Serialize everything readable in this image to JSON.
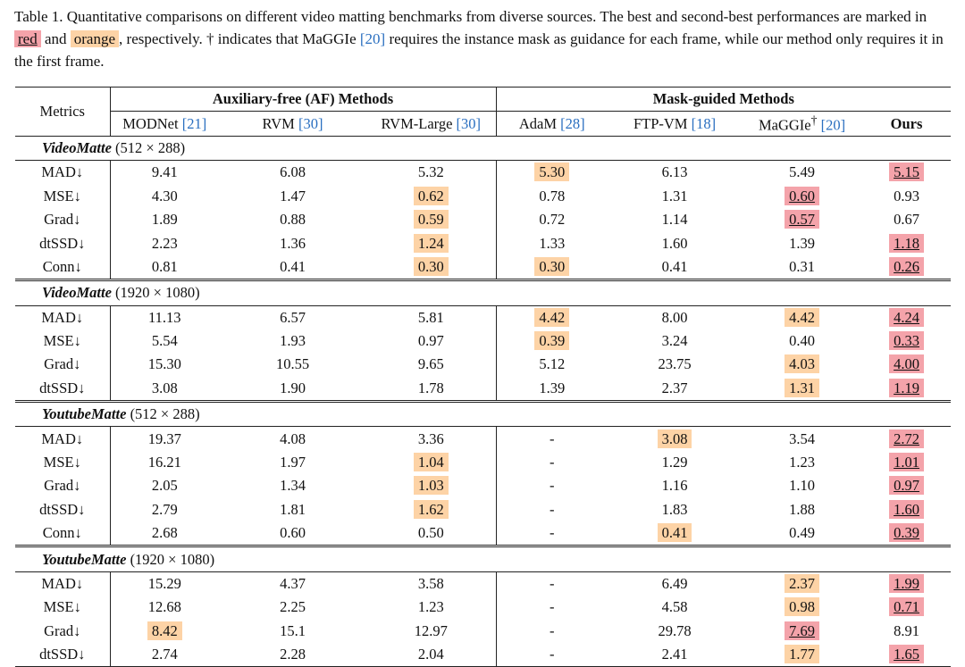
{
  "caption": {
    "before": "Table 1. Quantitative comparisons on different video matting benchmarks from diverse sources. The best and second-best performances are marked in",
    "best_word": "red",
    "between": "and",
    "second_word": "orange",
    "after": ", respectively. † indicates that MaGGIe",
    "ref": "[20]",
    "end": "requires the instance mask as guidance for each frame, while our method only requires it in the first frame."
  },
  "highlight_colors": {
    "best": "#f4a3aa",
    "second": "#fdd3a6"
  },
  "table": {
    "metrics_header": "Metrics",
    "groups": [
      {
        "name": "Auxiliary-free (AF) Methods",
        "span": 3
      },
      {
        "name": "Mask-guided Methods",
        "span": 4
      }
    ],
    "columns": [
      {
        "name": "MODNet",
        "ref": "[21]"
      },
      {
        "name": "RVM",
        "ref": "[30]"
      },
      {
        "name": "RVM-Large",
        "ref": "[30]"
      },
      {
        "name": "AdaM",
        "ref": "[28]"
      },
      {
        "name": "FTP-VM",
        "ref": "[18]"
      },
      {
        "name": "MaGGIe",
        "sup": "†",
        "ref": "[20]"
      },
      {
        "name": "Ours",
        "bold": true
      }
    ],
    "sections": [
      {
        "title": "VideoMatte",
        "subtitle": "(512 × 288)",
        "rows": [
          {
            "metric": "MAD↓",
            "cells": [
              "9.41",
              "6.08",
              "5.32",
              {
                "text": "5.30",
                "mark": "second"
              },
              "6.13",
              "5.49",
              {
                "text": "5.15",
                "mark": "best"
              }
            ]
          },
          {
            "metric": "MSE↓",
            "cells": [
              "4.30",
              "1.47",
              {
                "text": "0.62",
                "mark": "second"
              },
              "0.78",
              "1.31",
              {
                "text": "0.60",
                "mark": "best"
              },
              "0.93"
            ]
          },
          {
            "metric": "Grad↓",
            "cells": [
              "1.89",
              "0.88",
              {
                "text": "0.59",
                "mark": "second"
              },
              "0.72",
              "1.14",
              {
                "text": "0.57",
                "mark": "best"
              },
              "0.67"
            ]
          },
          {
            "metric": "dtSSD↓",
            "cells": [
              "2.23",
              "1.36",
              {
                "text": "1.24",
                "mark": "second"
              },
              "1.33",
              "1.60",
              "1.39",
              {
                "text": "1.18",
                "mark": "best"
              }
            ]
          },
          {
            "metric": "Conn↓",
            "cells": [
              "0.81",
              "0.41",
              {
                "text": "0.30",
                "mark": "second"
              },
              {
                "text": "0.30",
                "mark": "second"
              },
              "0.41",
              "0.31",
              {
                "text": "0.26",
                "mark": "best"
              }
            ]
          }
        ]
      },
      {
        "title": "VideoMatte",
        "subtitle": "(1920 × 1080)",
        "rows": [
          {
            "metric": "MAD↓",
            "cells": [
              "11.13",
              "6.57",
              "5.81",
              {
                "text": "4.42",
                "mark": "second"
              },
              "8.00",
              {
                "text": "4.42",
                "mark": "second"
              },
              {
                "text": "4.24",
                "mark": "best"
              }
            ]
          },
          {
            "metric": "MSE↓",
            "cells": [
              "5.54",
              "1.93",
              "0.97",
              {
                "text": "0.39",
                "mark": "second"
              },
              "3.24",
              "0.40",
              {
                "text": "0.33",
                "mark": "best"
              }
            ]
          },
          {
            "metric": "Grad↓",
            "cells": [
              "15.30",
              "10.55",
              "9.65",
              "5.12",
              "23.75",
              {
                "text": "4.03",
                "mark": "second"
              },
              {
                "text": "4.00",
                "mark": "best"
              }
            ]
          },
          {
            "metric": "dtSSD↓",
            "cells": [
              "3.08",
              "1.90",
              "1.78",
              "1.39",
              "2.37",
              {
                "text": "1.31",
                "mark": "second"
              },
              {
                "text": "1.19",
                "mark": "best"
              }
            ]
          }
        ]
      },
      {
        "title": "YoutubeMatte",
        "subtitle": "(512 × 288)",
        "rows": [
          {
            "metric": "MAD↓",
            "cells": [
              "19.37",
              "4.08",
              "3.36",
              "-",
              {
                "text": "3.08",
                "mark": "second"
              },
              "3.54",
              {
                "text": "2.72",
                "mark": "best"
              }
            ]
          },
          {
            "metric": "MSE↓",
            "cells": [
              "16.21",
              "1.97",
              {
                "text": "1.04",
                "mark": "second"
              },
              "-",
              "1.29",
              "1.23",
              {
                "text": "1.01",
                "mark": "best"
              }
            ]
          },
          {
            "metric": "Grad↓",
            "cells": [
              "2.05",
              "1.34",
              {
                "text": "1.03",
                "mark": "second"
              },
              "-",
              "1.16",
              "1.10",
              {
                "text": "0.97",
                "mark": "best"
              }
            ]
          },
          {
            "metric": "dtSSD↓",
            "cells": [
              "2.79",
              "1.81",
              {
                "text": "1.62",
                "mark": "second"
              },
              "-",
              "1.83",
              "1.88",
              {
                "text": "1.60",
                "mark": "best"
              }
            ]
          },
          {
            "metric": "Conn↓",
            "cells": [
              "2.68",
              "0.60",
              "0.50",
              "-",
              {
                "text": "0.41",
                "mark": "second"
              },
              "0.49",
              {
                "text": "0.39",
                "mark": "best"
              }
            ]
          }
        ]
      },
      {
        "title": "YoutubeMatte",
        "subtitle": "(1920 × 1080)",
        "rows": [
          {
            "metric": "MAD↓",
            "cells": [
              "15.29",
              "4.37",
              "3.58",
              "-",
              "6.49",
              {
                "text": "2.37",
                "mark": "second"
              },
              {
                "text": "1.99",
                "mark": "best"
              }
            ]
          },
          {
            "metric": "MSE↓",
            "cells": [
              "12.68",
              "2.25",
              "1.23",
              "-",
              "4.58",
              {
                "text": "0.98",
                "mark": "second"
              },
              {
                "text": "0.71",
                "mark": "best"
              }
            ]
          },
          {
            "metric": "Grad↓",
            "cells": [
              {
                "text": "8.42",
                "mark": "second"
              },
              "15.1",
              "12.97",
              "-",
              "29.78",
              {
                "text": "7.69",
                "mark": "best"
              },
              "8.91"
            ]
          },
          {
            "metric": "dtSSD↓",
            "cells": [
              "2.74",
              "2.28",
              "2.04",
              "-",
              "2.41",
              {
                "text": "1.77",
                "mark": "second"
              },
              {
                "text": "1.65",
                "mark": "best"
              }
            ]
          }
        ]
      }
    ]
  }
}
